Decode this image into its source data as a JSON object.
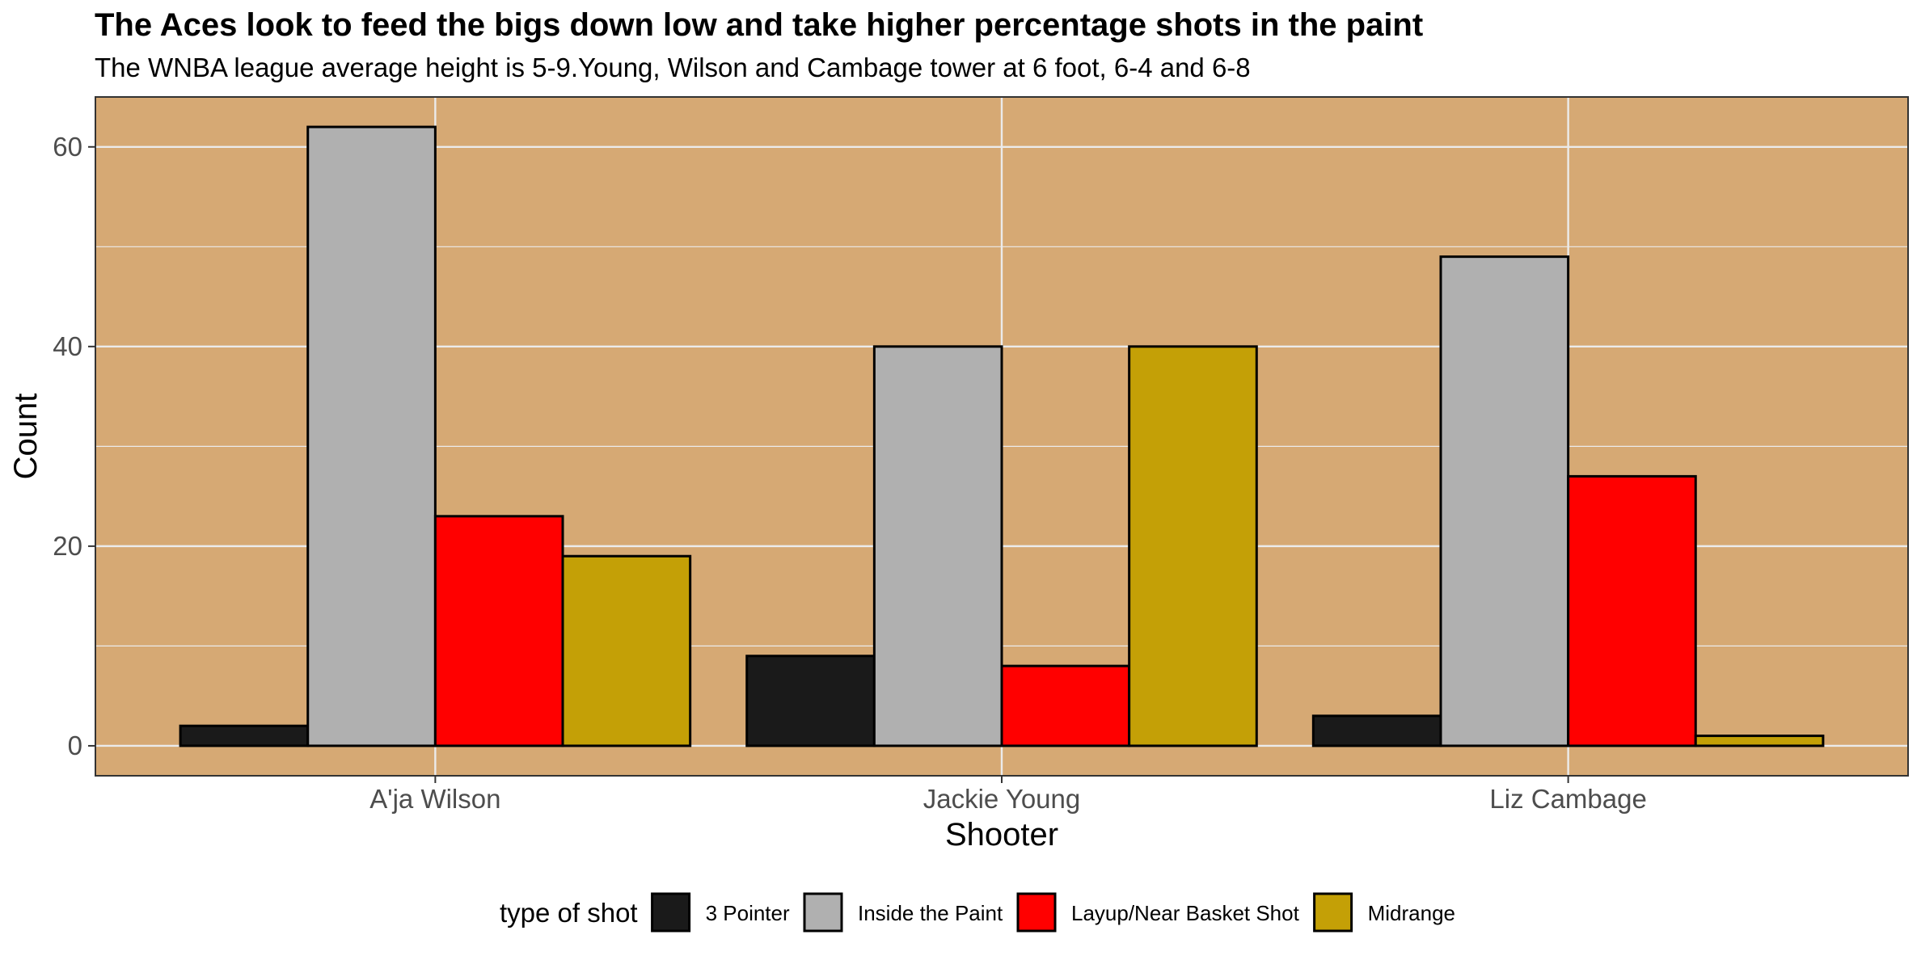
{
  "chart_data": {
    "type": "bar",
    "title": "The Aces look to feed the bigs down low and take higher percentage shots in the paint",
    "subtitle": "The WNBA league average height is 5-9.Young, Wilson and Cambage tower at 6 foot, 6-4 and 6-8",
    "xlabel": "Shooter",
    "ylabel": "Count",
    "categories": [
      "A'ja Wilson",
      "Jackie Young",
      "Liz Cambage"
    ],
    "series": [
      {
        "name": "3 Pointer",
        "color": "#1a1a1a",
        "values": [
          2,
          9,
          3
        ]
      },
      {
        "name": "Inside the Paint",
        "color": "#b0b0b0",
        "values": [
          62,
          40,
          49
        ]
      },
      {
        "name": "Layup/Near Basket Shot",
        "color": "#ff0000",
        "values": [
          23,
          8,
          27
        ]
      },
      {
        "name": "Midrange",
        "color": "#c4a006",
        "values": [
          19,
          40,
          1
        ]
      }
    ],
    "ylim": [
      -3,
      65
    ],
    "yticks": [
      0,
      20,
      40,
      60
    ],
    "grid": true,
    "panel_background": "#d6a974",
    "gridline_color": "#ebebeb",
    "legend": {
      "title": "type of shot",
      "position": "bottom"
    }
  }
}
